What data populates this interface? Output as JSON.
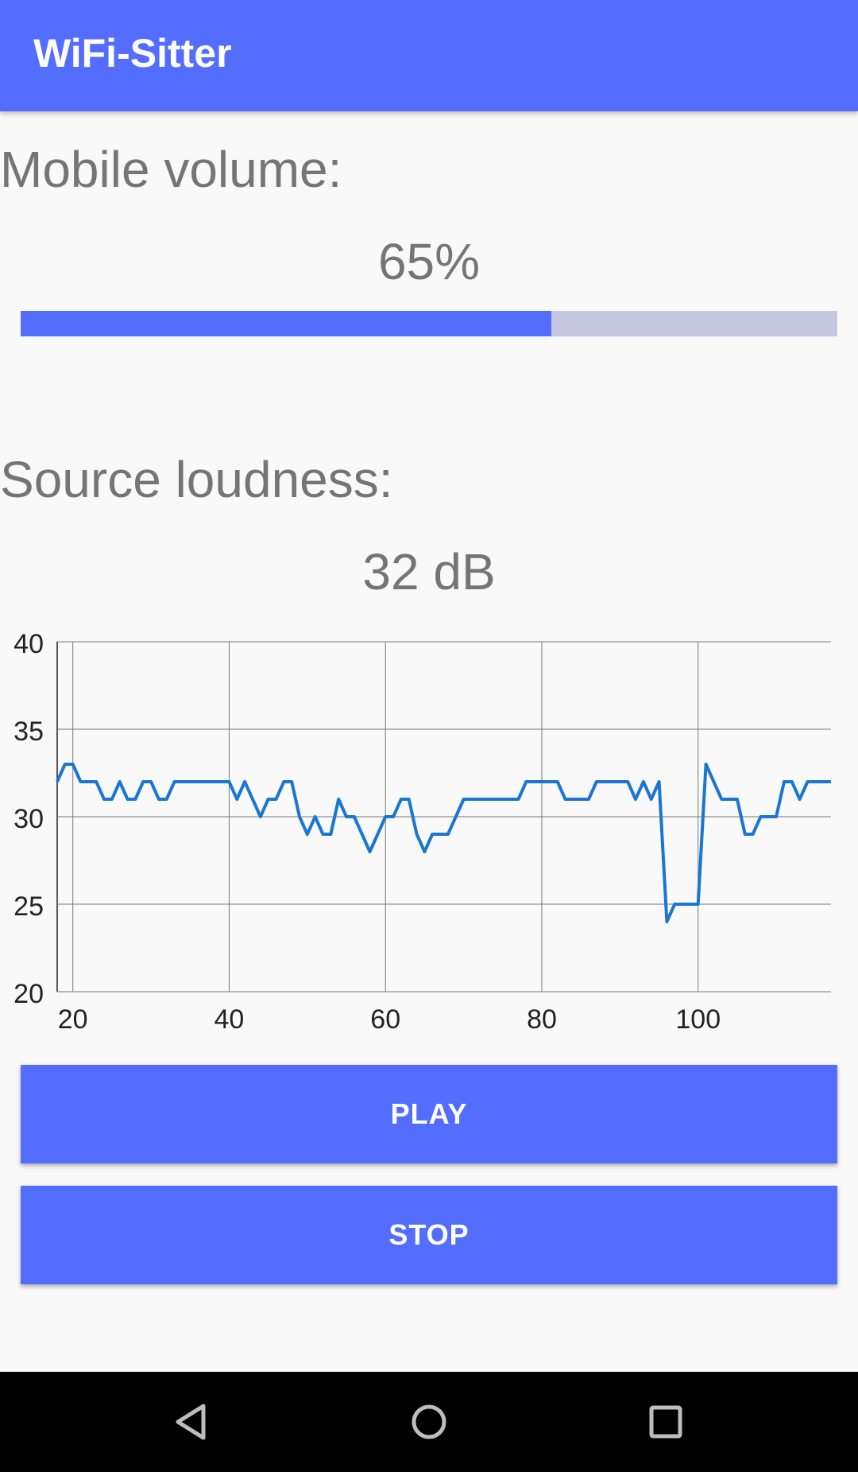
{
  "app": {
    "title": "WiFi-Sitter"
  },
  "volume": {
    "label": "Mobile volume:",
    "value_text": "65%",
    "percent": 65
  },
  "loudness": {
    "label": "Source loudness:",
    "value_text": "32 dB"
  },
  "chart_data": {
    "type": "line",
    "title": "",
    "xlabel": "",
    "ylabel": "",
    "xlim": [
      18,
      117
    ],
    "ylim": [
      20,
      40
    ],
    "x_ticks": [
      20,
      40,
      60,
      80,
      100
    ],
    "x_tick_labels": [
      "20",
      "40",
      "60",
      "80",
      "100"
    ],
    "y_ticks": [
      20,
      25,
      30,
      35,
      40
    ],
    "y_tick_labels": [
      "20",
      "25",
      "30",
      "35",
      "40"
    ],
    "grid": true,
    "series": [
      {
        "name": "loudness",
        "color": "#1976d2",
        "x": [
          18,
          19,
          20,
          21,
          22,
          23,
          24,
          25,
          26,
          27,
          28,
          29,
          30,
          31,
          32,
          33,
          34,
          35,
          36,
          37,
          38,
          39,
          40,
          41,
          42,
          43,
          44,
          45,
          46,
          47,
          48,
          49,
          50,
          51,
          52,
          53,
          54,
          55,
          56,
          57,
          58,
          59,
          60,
          61,
          62,
          63,
          64,
          65,
          66,
          67,
          68,
          69,
          70,
          71,
          72,
          73,
          74,
          75,
          76,
          77,
          78,
          79,
          80,
          81,
          82,
          83,
          84,
          85,
          86,
          87,
          88,
          89,
          90,
          91,
          92,
          93,
          94,
          95,
          96,
          97,
          98,
          99,
          100,
          101,
          102,
          103,
          104,
          105,
          106,
          107,
          108,
          109,
          110,
          111,
          112,
          113,
          114,
          115,
          116,
          117
        ],
        "y": [
          32,
          33,
          33,
          32,
          32,
          32,
          31,
          31,
          32,
          31,
          31,
          32,
          32,
          31,
          31,
          32,
          32,
          32,
          32,
          32,
          32,
          32,
          32,
          31,
          32,
          31,
          30,
          31,
          31,
          32,
          32,
          30,
          29,
          30,
          29,
          29,
          31,
          30,
          30,
          29,
          28,
          29,
          30,
          30,
          31,
          31,
          29,
          28,
          29,
          29,
          29,
          30,
          31,
          31,
          31,
          31,
          31,
          31,
          31,
          31,
          32,
          32,
          32,
          32,
          32,
          31,
          31,
          31,
          31,
          32,
          32,
          32,
          32,
          32,
          31,
          32,
          31,
          32,
          24,
          25,
          25,
          25,
          25,
          33,
          32,
          31,
          31,
          31,
          29,
          29,
          30,
          30,
          30,
          32,
          32,
          31,
          32,
          32,
          32,
          32
        ]
      }
    ]
  },
  "buttons": {
    "play": "PLAY",
    "stop": "STOP"
  },
  "colors": {
    "primary": "#536dfe",
    "track": "#c5c7e0",
    "line": "#1976d2",
    "text": "#757575"
  },
  "navbar": {
    "icons": [
      "back-icon",
      "home-icon",
      "recents-icon"
    ]
  }
}
